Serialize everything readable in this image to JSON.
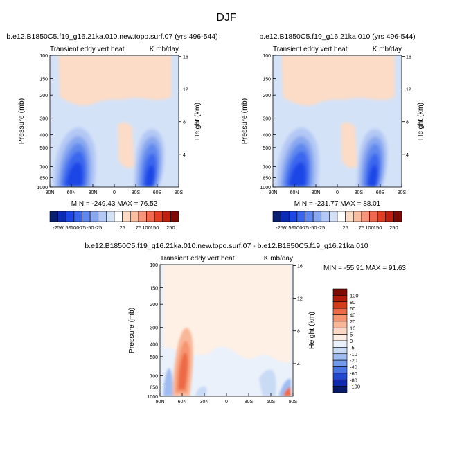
{
  "figure": {
    "title": "DJF"
  },
  "panels": [
    {
      "id": "p1",
      "case_title": "b.e12.B1850C5.f19_g16.21ka.010.new.topo.surf.07 (yrs 496-544)",
      "left_title": "Transient eddy vert heat",
      "right_title": "K mb/day",
      "ylabel": "Pressure (mb)",
      "y2label": "Height (km)",
      "stats": "MIN = -249.43  MAX = 76.52"
    },
    {
      "id": "p2",
      "case_title": "b.e12.B1850C5.f19_g16.21ka.010 (yrs 496-544)",
      "left_title": "Transient eddy vert heat",
      "right_title": "K mb/day",
      "ylabel": "Pressure (mb)",
      "y2label": "Height (km)",
      "stats": "MIN = -231.77  MAX = 88.01"
    },
    {
      "id": "p3",
      "case_title": "b.e12.B1850C5.f19_g16.21ka.010.new.topo.surf.07 - b.e12.B1850C5.f19_g16.21ka.010",
      "left_title": "Transient eddy vert heat",
      "right_title": "K mb/day",
      "ylabel": "Pressure (mb)",
      "y2label": "Height (km)",
      "stats": "MIN = -55.91  MAX = 91.63"
    }
  ],
  "chart_data": [
    {
      "type": "heatmap",
      "panel": "p1",
      "x_ticks": [
        "90N",
        "60N",
        "30N",
        "0",
        "30S",
        "60S",
        "90S"
      ],
      "y_ticks": [
        "100",
        "150",
        "200",
        "300",
        "400",
        "500",
        "700",
        "850",
        "1000"
      ],
      "y2_ticks": [
        "16",
        "12",
        "8",
        "4"
      ],
      "xlim": [
        "90N",
        "90S"
      ],
      "ylim_mb": [
        1000,
        100
      ],
      "y_scale": "log",
      "min": -249.43,
      "max": 76.52
    },
    {
      "type": "heatmap",
      "panel": "p2",
      "x_ticks": [
        "90N",
        "60N",
        "30N",
        "0",
        "30S",
        "60S",
        "90S"
      ],
      "y_ticks": [
        "100",
        "150",
        "200",
        "300",
        "400",
        "500",
        "700",
        "850",
        "1000"
      ],
      "y2_ticks": [
        "16",
        "12",
        "8",
        "4"
      ],
      "xlim": [
        "90N",
        "90S"
      ],
      "ylim_mb": [
        1000,
        100
      ],
      "y_scale": "log",
      "min": -231.77,
      "max": 88.01
    },
    {
      "type": "heatmap",
      "panel": "p3",
      "x_ticks": [
        "90N",
        "60N",
        "30N",
        "0",
        "30S",
        "60S",
        "90S"
      ],
      "y_ticks": [
        "100",
        "150",
        "200",
        "300",
        "400",
        "500",
        "700",
        "850",
        "1000"
      ],
      "y2_ticks": [
        "16",
        "12",
        "8",
        "4"
      ],
      "xlim": [
        "90N",
        "90S"
      ],
      "ylim_mb": [
        1000,
        100
      ],
      "y_scale": "log",
      "min": -55.91,
      "max": 91.63
    }
  ],
  "colorbars": {
    "top": {
      "labels": [
        "-250",
        "-150",
        "-100",
        "-75",
        "-50",
        "-25",
        "25",
        "75",
        "100",
        "150",
        "250"
      ],
      "colors": [
        "#08206e",
        "#0b2cb4",
        "#1d46e6",
        "#3a66ee",
        "#6088ee",
        "#8aa8f0",
        "#b3c8f4",
        "#d4e2f8",
        "#ffffff",
        "#fcdcc6",
        "#f9bea1",
        "#f6957a",
        "#f06a4f",
        "#e43e24",
        "#c0210e",
        "#7d0a04"
      ]
    },
    "diff": {
      "labels": [
        "100",
        "80",
        "60",
        "40",
        "20",
        "10",
        "5",
        "0",
        "-5",
        "-10",
        "-20",
        "-40",
        "-60",
        "-80",
        "-100"
      ],
      "colors": [
        "#7d0a04",
        "#b01b0a",
        "#d43a1c",
        "#ec6a45",
        "#f5946f",
        "#f9b79a",
        "#fcd9c6",
        "#fef0e4",
        "#eaf1fb",
        "#c9daf5",
        "#9fbcf0",
        "#7399ea",
        "#4a74e2",
        "#2248d2",
        "#0b2ab0",
        "#071a6c"
      ]
    }
  }
}
